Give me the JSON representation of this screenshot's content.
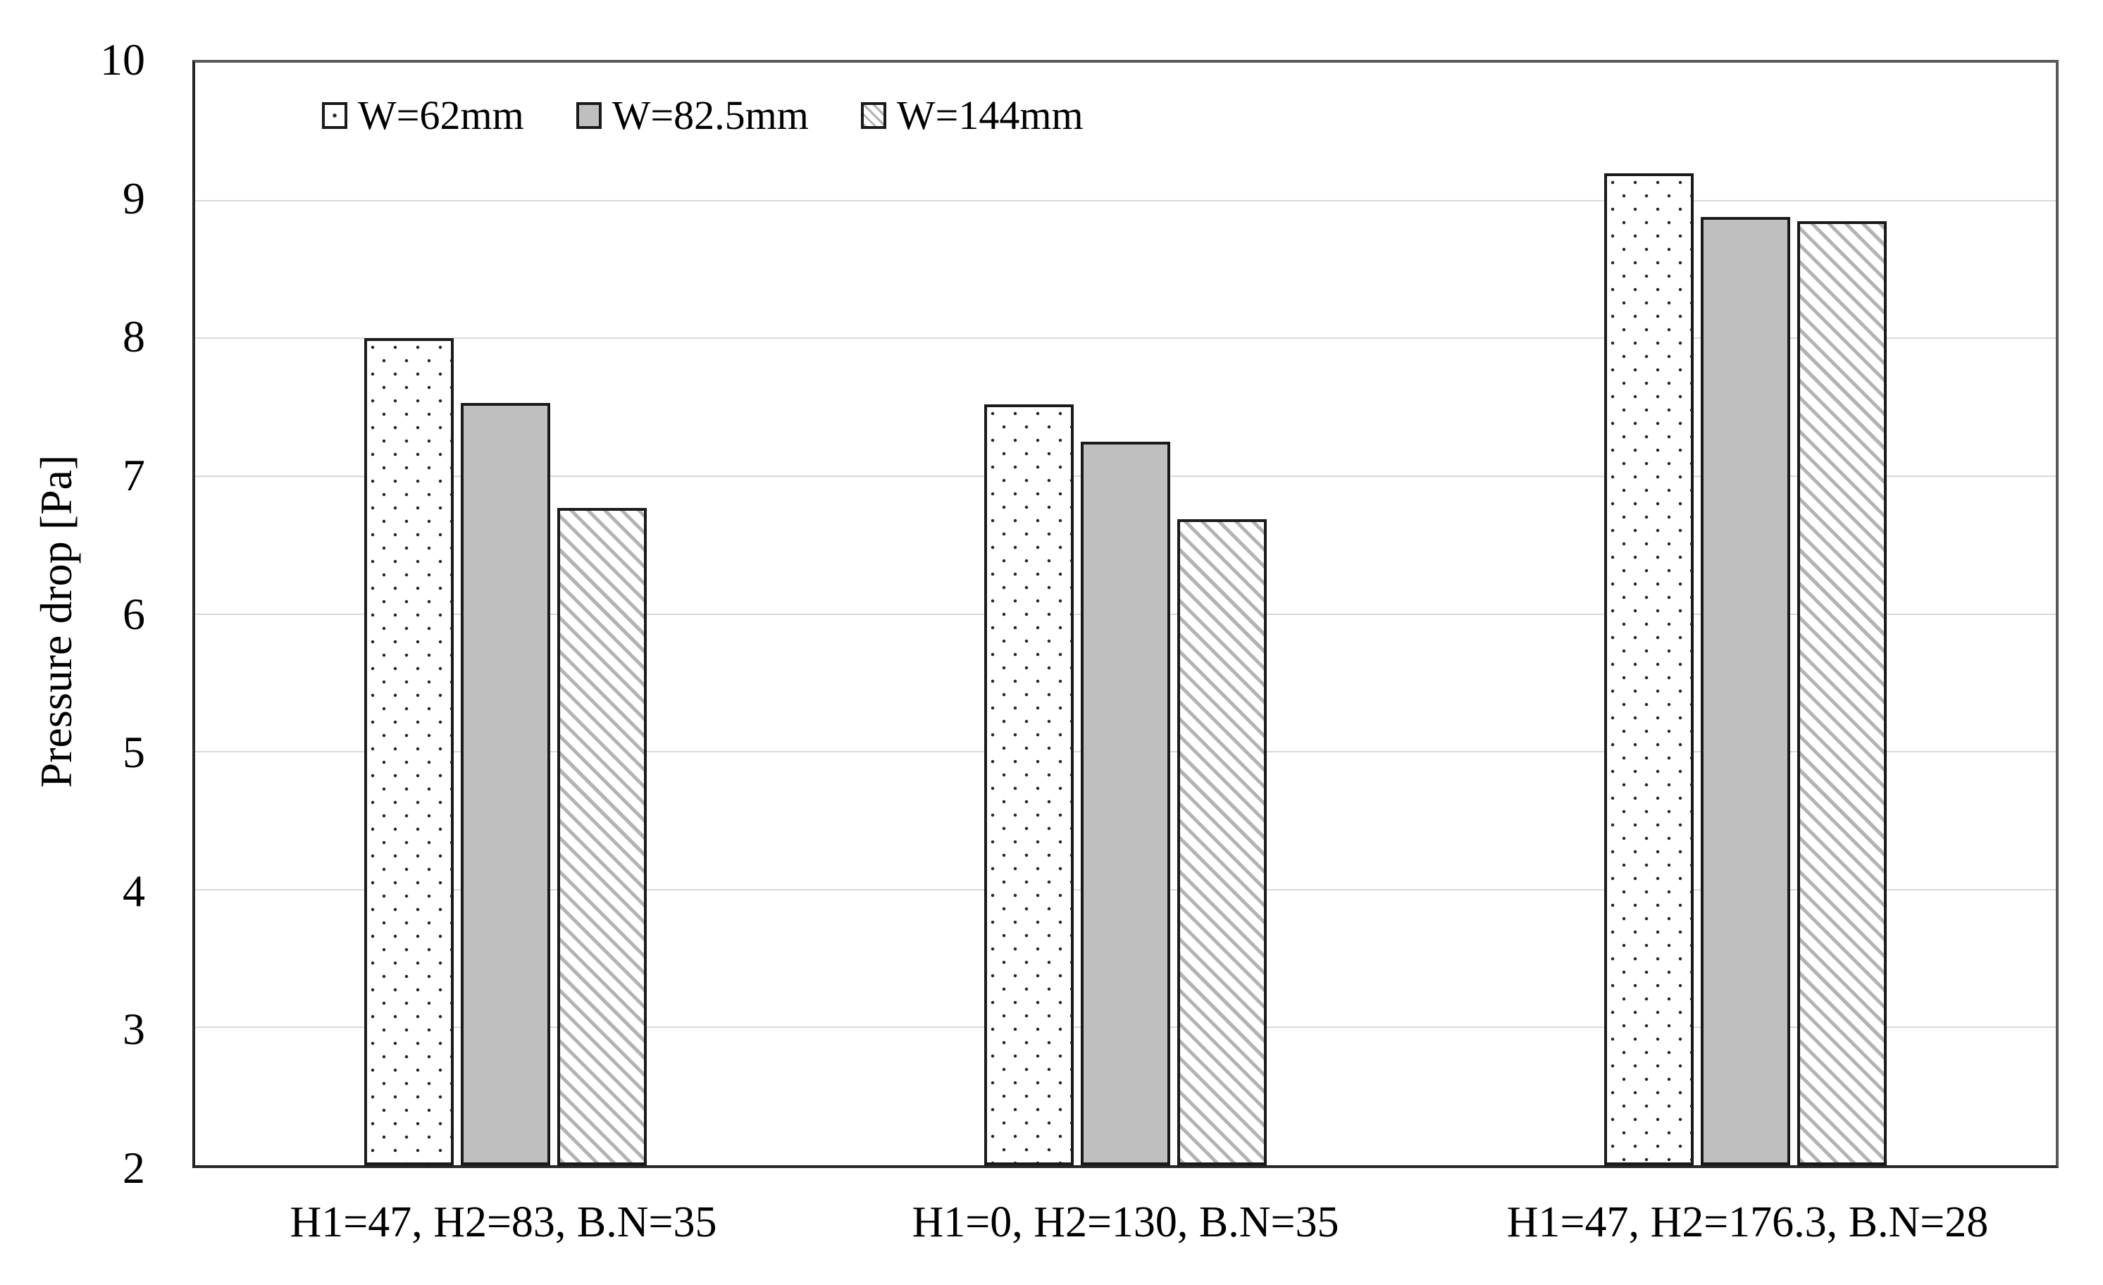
{
  "chart_data": {
    "type": "bar",
    "title": "",
    "xlabel": "",
    "ylabel": "Pressure drop [Pa]",
    "ylim": [
      2,
      10
    ],
    "yticks": [
      10,
      9,
      8,
      7,
      6,
      5,
      4,
      3,
      2
    ],
    "ygrid": [
      9,
      8,
      7,
      6,
      5,
      4,
      3
    ],
    "grid": "horizontal-light",
    "legend_position": "top-left-inside",
    "categories": [
      "H1=47, H2=83, B.N=35",
      "H1=0, H2=130, B.N=35",
      "H1=47, H2=176.3, B.N=28"
    ],
    "series": [
      {
        "name": "W=62mm",
        "pattern": "dots",
        "values": [
          8.0,
          7.52,
          9.2
        ]
      },
      {
        "name": "W=82.5mm",
        "pattern": "solid",
        "values": [
          7.53,
          7.25,
          8.88
        ]
      },
      {
        "name": "W=144mm",
        "pattern": "hatch",
        "values": [
          6.77,
          6.69,
          8.85
        ]
      }
    ]
  },
  "colors": {
    "background": "#ffffff",
    "text": "#000000",
    "bar_border": "#1a1a1a",
    "bar_gray_fill": "#bfbfbf",
    "dot_color": "#262626",
    "hatch_line": "#b3b3b3",
    "gridline": "#d9d9d9",
    "axis_border_dark": "#262626",
    "axis_border_light": "#595959"
  }
}
